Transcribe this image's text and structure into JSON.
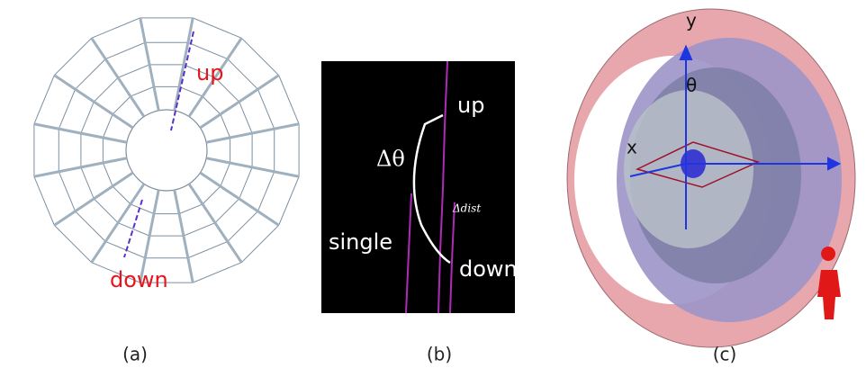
{
  "panels": [
    {
      "labels": [
        "up",
        "down"
      ],
      "caption": "(a)"
    },
    {
      "labels": [
        "up",
        "Δθ",
        "Δdist",
        "single",
        "down"
      ],
      "caption": "(b)"
    },
    {
      "labels": [
        "y",
        "θ",
        "x"
      ],
      "caption": "(c)"
    }
  ]
}
